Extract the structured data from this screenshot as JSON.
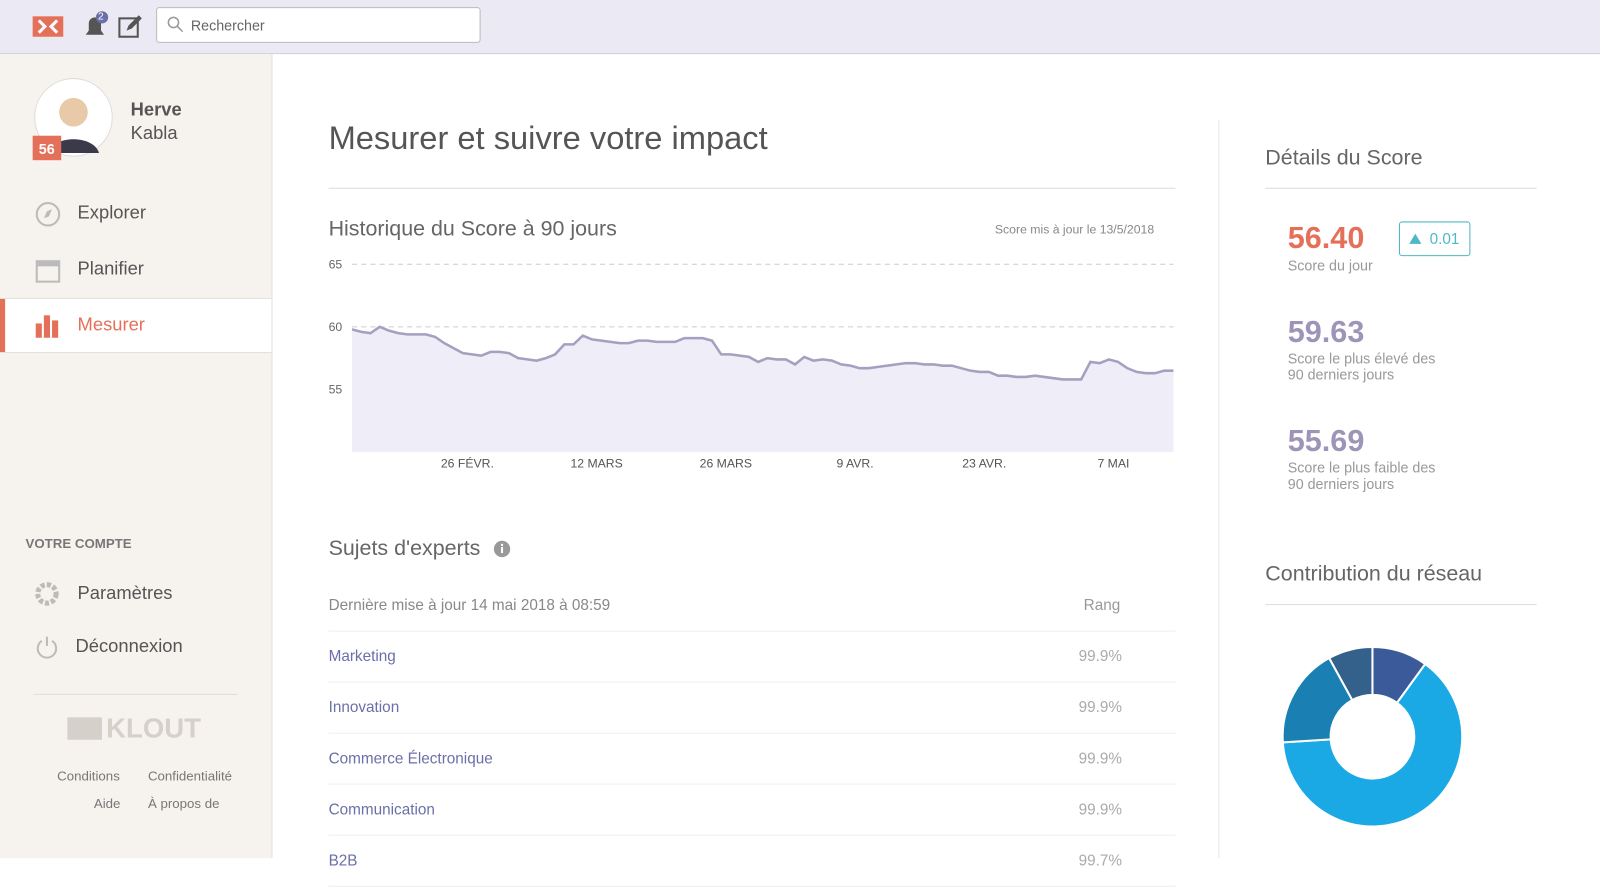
{
  "header": {
    "search_placeholder": "Rechercher",
    "notification_count": "2"
  },
  "profile": {
    "first_name": "Herve",
    "last_name": "Kabla",
    "score": "56"
  },
  "nav": {
    "items": [
      "Explorer",
      "Planifier",
      "Mesurer"
    ],
    "active": 2
  },
  "account": {
    "title": "VOTRE COMPTE",
    "items": [
      "Paramètres",
      "Déconnexion"
    ]
  },
  "footer": {
    "logo": "KLOUT",
    "links": [
      "Conditions",
      "Confidentialité",
      "Aide",
      "À propos de"
    ]
  },
  "main": {
    "title": "Mesurer et suivre votre impact"
  },
  "history": {
    "type": "line",
    "title": "Historique du Score à 90 jours",
    "updated": "Score mis à jour le 13/5/2018",
    "color": "#a79fbf",
    "ylim": [
      50,
      65
    ],
    "yticks": [
      55,
      60,
      65
    ],
    "xlim": [
      0,
      89
    ],
    "xticks": [
      {
        "value": 12.5,
        "label": "26 FÉVR."
      },
      {
        "value": 26.5,
        "label": "12 MARS"
      },
      {
        "value": 40.5,
        "label": "26 MARS"
      },
      {
        "value": 54.5,
        "label": "9 AVR."
      },
      {
        "value": 68.5,
        "label": "23 AVR."
      },
      {
        "value": 82.5,
        "label": "7 MAI"
      }
    ],
    "values": [
      59.8,
      59.6,
      59.5,
      60.0,
      59.7,
      59.5,
      59.4,
      59.4,
      59.4,
      59.2,
      58.7,
      58.3,
      57.9,
      57.8,
      57.7,
      58.0,
      58.0,
      57.9,
      57.5,
      57.4,
      57.3,
      57.5,
      57.8,
      58.6,
      58.6,
      59.3,
      59.0,
      58.9,
      58.8,
      58.7,
      58.7,
      58.9,
      58.9,
      58.8,
      58.8,
      58.8,
      59.1,
      59.1,
      59.1,
      58.9,
      57.8,
      57.8,
      57.7,
      57.6,
      57.2,
      57.5,
      57.4,
      57.4,
      57.0,
      57.6,
      57.3,
      57.4,
      57.3,
      57.0,
      56.9,
      56.7,
      56.7,
      56.8,
      56.9,
      57.0,
      57.1,
      57.1,
      57.0,
      57.0,
      56.9,
      56.9,
      56.7,
      56.5,
      56.4,
      56.4,
      56.1,
      56.1,
      56.0,
      56.0,
      56.1,
      56.0,
      55.9,
      55.8,
      55.8,
      55.8,
      57.2,
      57.1,
      57.4,
      57.2,
      56.7,
      56.4,
      56.3,
      56.3,
      56.5,
      56.5
    ]
  },
  "experts": {
    "title": "Sujets d'experts",
    "updated": "Dernière mise à jour 14 mai 2018 à 08:59",
    "rank_header": "Rang",
    "rows": [
      [
        "Marketing",
        "99.9%"
      ],
      [
        "Innovation",
        "99.9%"
      ],
      [
        "Commerce Électronique",
        "99.9%"
      ],
      [
        "Communication",
        "99.9%"
      ],
      [
        "B2B",
        "99.7%"
      ]
    ]
  },
  "score_details": {
    "title": "Détails du Score",
    "today": "56.40",
    "today_label": "Score du jour",
    "change": "0.01",
    "highest": "59.63",
    "highest_label": [
      "Score le plus élevé des",
      "90 derniers jours"
    ],
    "lowest": "55.69",
    "lowest_label": [
      "Score le plus faible des",
      "90 derniers jours"
    ]
  },
  "network_contribution": {
    "type": "pie",
    "title": "Contribution du réseau",
    "values": [
      10,
      64,
      18,
      8
    ],
    "colors": [
      "#3b5a9a",
      "#1ba9e6",
      "#1a80b3",
      "#34618b"
    ]
  }
}
